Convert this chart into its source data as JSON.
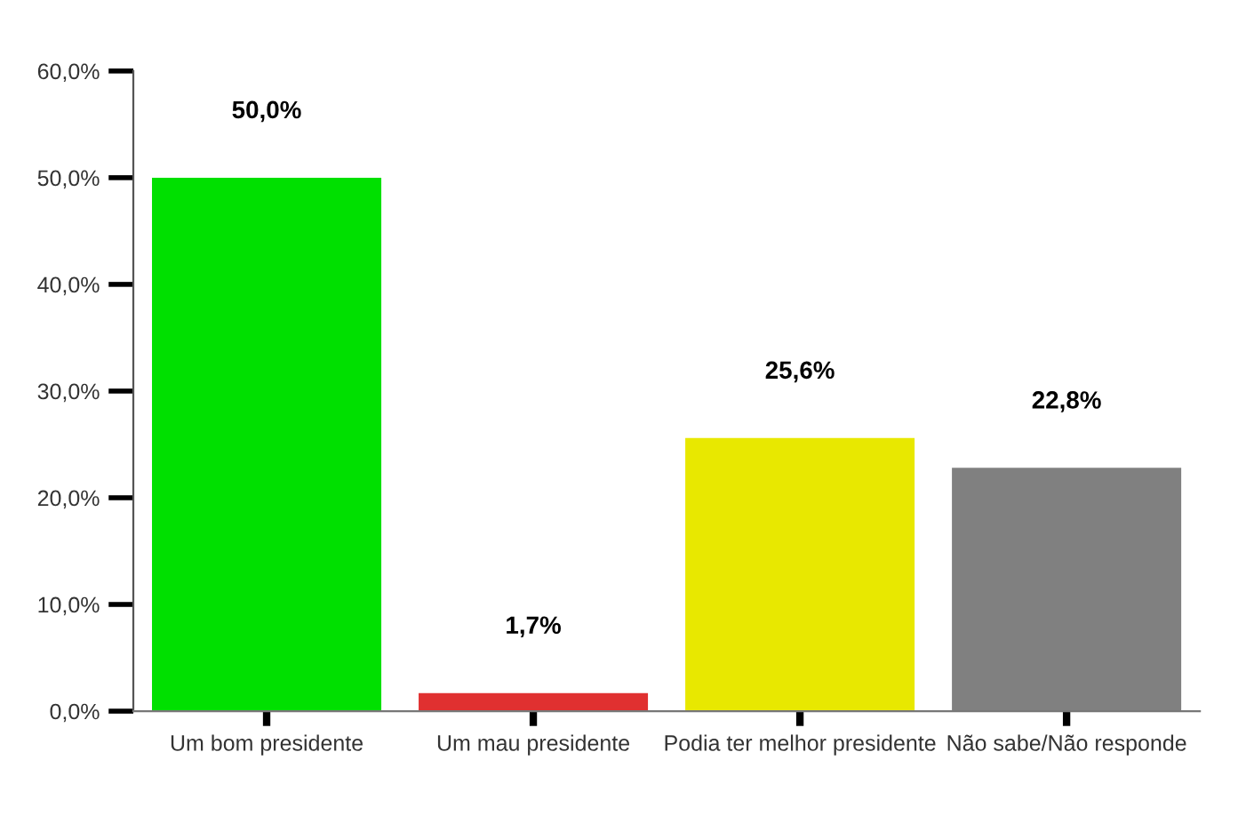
{
  "chart_data": {
    "type": "bar",
    "categories": [
      "Um bom presidente",
      "Um mau presidente",
      "Podia ter melhor presidente",
      "Não sabe/Não responde"
    ],
    "values": [
      50.0,
      1.7,
      25.6,
      22.8
    ],
    "colors": [
      "#00e000",
      "#e03030",
      "#e8e800",
      "#808080"
    ],
    "value_labels": [
      "50,0%",
      "1,7%",
      "25,6%",
      "22,8%"
    ],
    "ylim": [
      0,
      60
    ],
    "yticks": [
      {
        "value": 0,
        "label": "0,0%"
      },
      {
        "value": 10,
        "label": "10,0%"
      },
      {
        "value": 20,
        "label": "20,0%"
      },
      {
        "value": 30,
        "label": "30,0%"
      },
      {
        "value": 40,
        "label": "40,0%"
      },
      {
        "value": 50,
        "label": "50,0%"
      },
      {
        "value": 60,
        "label": "60,0%"
      }
    ],
    "grid": false,
    "legend": false
  }
}
